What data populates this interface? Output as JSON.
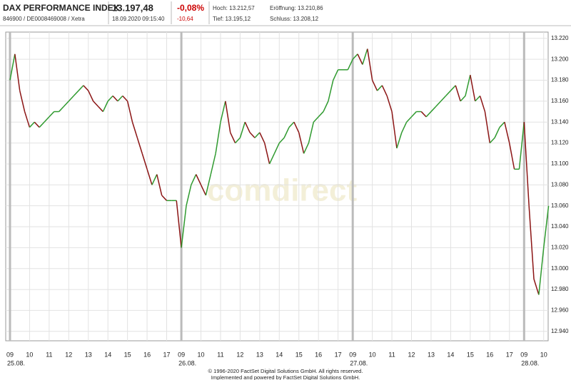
{
  "header": {
    "name": "DAX PERFORMANCE INDEX",
    "ids": "846900 / DE0008469008 / Xetra",
    "price": "13.197,48",
    "time": "18.09.2020 09:15:40",
    "change_pct": "-0,08%",
    "change_abs": "-10,64",
    "high": "Hoch: 13.212,57",
    "open": "Eröffnung: 13.210,86",
    "low": "Tief: 13.195,12",
    "close": "Schluss: 13.208,12"
  },
  "chart_data": {
    "type": "line",
    "watermark": "comdirect",
    "categories": [
      "09",
      null,
      null,
      null,
      "10",
      null,
      null,
      null,
      "11",
      null,
      null,
      null,
      "12",
      null,
      null,
      null,
      "13",
      null,
      null,
      null,
      "14",
      null,
      null,
      null,
      "15",
      null,
      null,
      null,
      "16",
      null,
      null,
      null,
      "17",
      null,
      null,
      "09",
      null,
      null,
      null,
      "10",
      null,
      null,
      null,
      "11",
      null,
      null,
      null,
      "12",
      null,
      null,
      null,
      "13",
      null,
      null,
      null,
      "14",
      null,
      null,
      null,
      "15",
      null,
      null,
      null,
      "16",
      null,
      null,
      null,
      "17",
      null,
      null,
      "09",
      null,
      null,
      null,
      "10",
      null,
      null,
      null,
      "11",
      null,
      null,
      null,
      "12",
      null,
      null,
      null,
      "13",
      null,
      null,
      null,
      "14",
      null,
      null,
      null,
      "15",
      null,
      null,
      null,
      "16",
      null,
      null,
      null,
      "17",
      null,
      null,
      "09",
      null,
      null,
      null,
      "10",
      null
    ],
    "dates": [
      "25.08.",
      "26.08.",
      "27.08.",
      "28.08."
    ],
    "values": [
      13180,
      13205,
      13170,
      13150,
      13135,
      13140,
      13135,
      13140,
      13145,
      13150,
      13150,
      13155,
      13160,
      13165,
      13170,
      13175,
      13170,
      13160,
      13155,
      13150,
      13160,
      13165,
      13160,
      13165,
      13160,
      13140,
      13125,
      13110,
      13095,
      13080,
      13090,
      13070,
      13065,
      13065,
      13065,
      13020,
      13060,
      13080,
      13090,
      13080,
      13070,
      13090,
      13110,
      13140,
      13160,
      13130,
      13120,
      13125,
      13140,
      13130,
      13125,
      13130,
      13120,
      13100,
      13110,
      13120,
      13125,
      13135,
      13140,
      13130,
      13110,
      13120,
      13140,
      13145,
      13150,
      13160,
      13180,
      13190,
      13190,
      13190,
      13200,
      13205,
      13195,
      13210,
      13180,
      13170,
      13175,
      13165,
      13150,
      13115,
      13130,
      13140,
      13145,
      13150,
      13150,
      13145,
      13150,
      13155,
      13160,
      13165,
      13170,
      13175,
      13160,
      13165,
      13185,
      13160,
      13165,
      13150,
      13120,
      13125,
      13135,
      13140,
      13120,
      13095,
      13095,
      13140,
      13060,
      12990,
      12975,
      13020,
      13060
    ],
    "up_color": "#2f9a2f",
    "down_color": "#8b1414",
    "ylim": [
      12931,
      13226
    ],
    "yticks": [
      {
        "value": 12940,
        "label": "12.940"
      },
      {
        "value": 12960,
        "label": "12.960"
      },
      {
        "value": 12980,
        "label": "12.980"
      },
      {
        "value": 13000,
        "label": "13.000"
      },
      {
        "value": 13020,
        "label": "13.020"
      },
      {
        "value": 13040,
        "label": "13.040"
      },
      {
        "value": 13060,
        "label": "13.060"
      },
      {
        "value": 13080,
        "label": "13.080"
      },
      {
        "value": 13100,
        "label": "13.100"
      },
      {
        "value": 13120,
        "label": "13.120"
      },
      {
        "value": 13140,
        "label": "13.140"
      },
      {
        "value": 13160,
        "label": "13.160"
      },
      {
        "value": 13180,
        "label": "13.180"
      },
      {
        "value": 13200,
        "label": "13.200"
      },
      {
        "value": 13220,
        "label": "13.220"
      }
    ],
    "grid": true,
    "footer": [
      "© 1996-2020 FactSet Digital Solutions GmbH. All rights reserved.",
      "Implemented and powered by FactSet Digital Solutions GmbH."
    ]
  }
}
